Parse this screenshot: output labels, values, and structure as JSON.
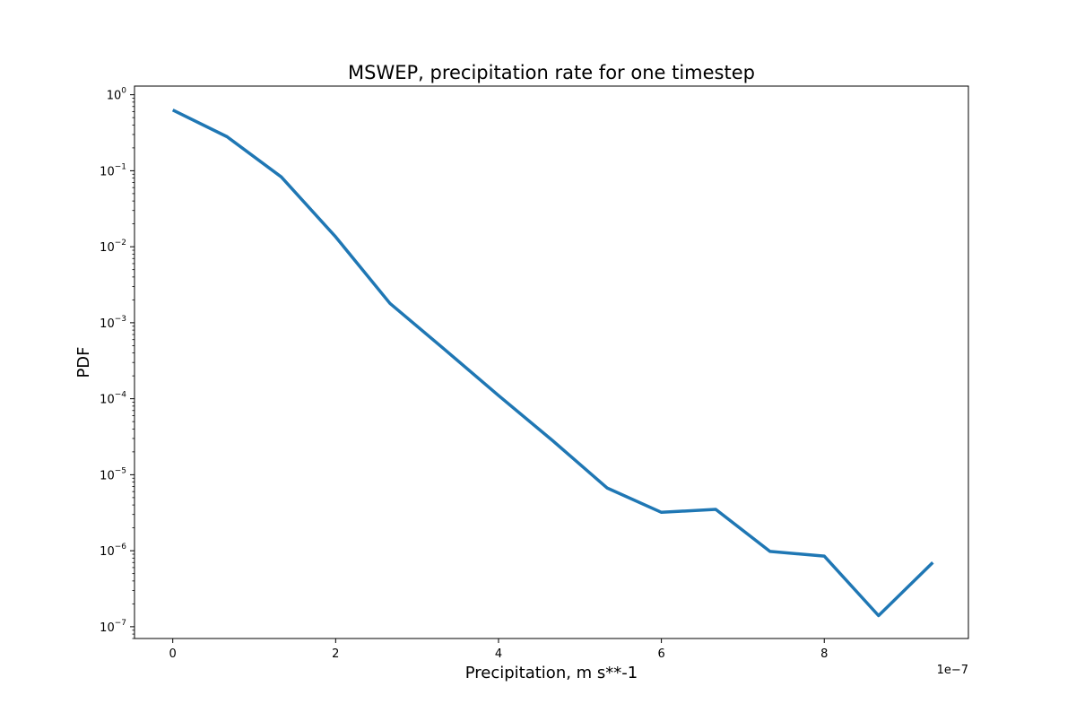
{
  "chart_data": {
    "type": "line",
    "title": "MSWEP, precipitation rate for one timestep",
    "xlabel": "Precipitation, m s**-1",
    "ylabel": "PDF",
    "x_offset_label": "1e−7",
    "x_scale_factor": 1e-07,
    "yscale": "log",
    "xlim": [
      -4.7e-08,
      9.77e-07
    ],
    "ylim": [
      7e-08,
      1.3
    ],
    "grid": false,
    "x_ticks": [
      0,
      2e-07,
      4e-07,
      6e-07,
      8e-07
    ],
    "x_tick_labels": [
      "0",
      "2",
      "4",
      "6",
      "8"
    ],
    "y_ticks": [
      1e-07,
      1e-06,
      1e-05,
      0.0001,
      0.001,
      0.01,
      0.1,
      1
    ],
    "y_tick_labels": [
      {
        "base": "10",
        "exp": "−7"
      },
      {
        "base": "10",
        "exp": "−6"
      },
      {
        "base": "10",
        "exp": "−5"
      },
      {
        "base": "10",
        "exp": "−4"
      },
      {
        "base": "10",
        "exp": "−3"
      },
      {
        "base": "10",
        "exp": "−2"
      },
      {
        "base": "10",
        "exp": "−1"
      },
      {
        "base": "10",
        "exp": "0"
      }
    ],
    "series": [
      {
        "color": "#1f77b4",
        "x": [
          0,
          6.67e-08,
          1.333e-07,
          2e-07,
          2.667e-07,
          3.333e-07,
          4e-07,
          4.667e-07,
          5.333e-07,
          6e-07,
          6.667e-07,
          7.333e-07,
          8e-07,
          8.667e-07,
          9.333e-07
        ],
        "y": [
          0.63,
          0.28,
          0.083,
          0.0135,
          0.0018,
          0.00045,
          0.00011,
          2.8e-05,
          6.7e-06,
          3.2e-06,
          3.5e-06,
          9.8e-07,
          8.5e-07,
          1.4e-07,
          7e-07
        ]
      }
    ]
  }
}
